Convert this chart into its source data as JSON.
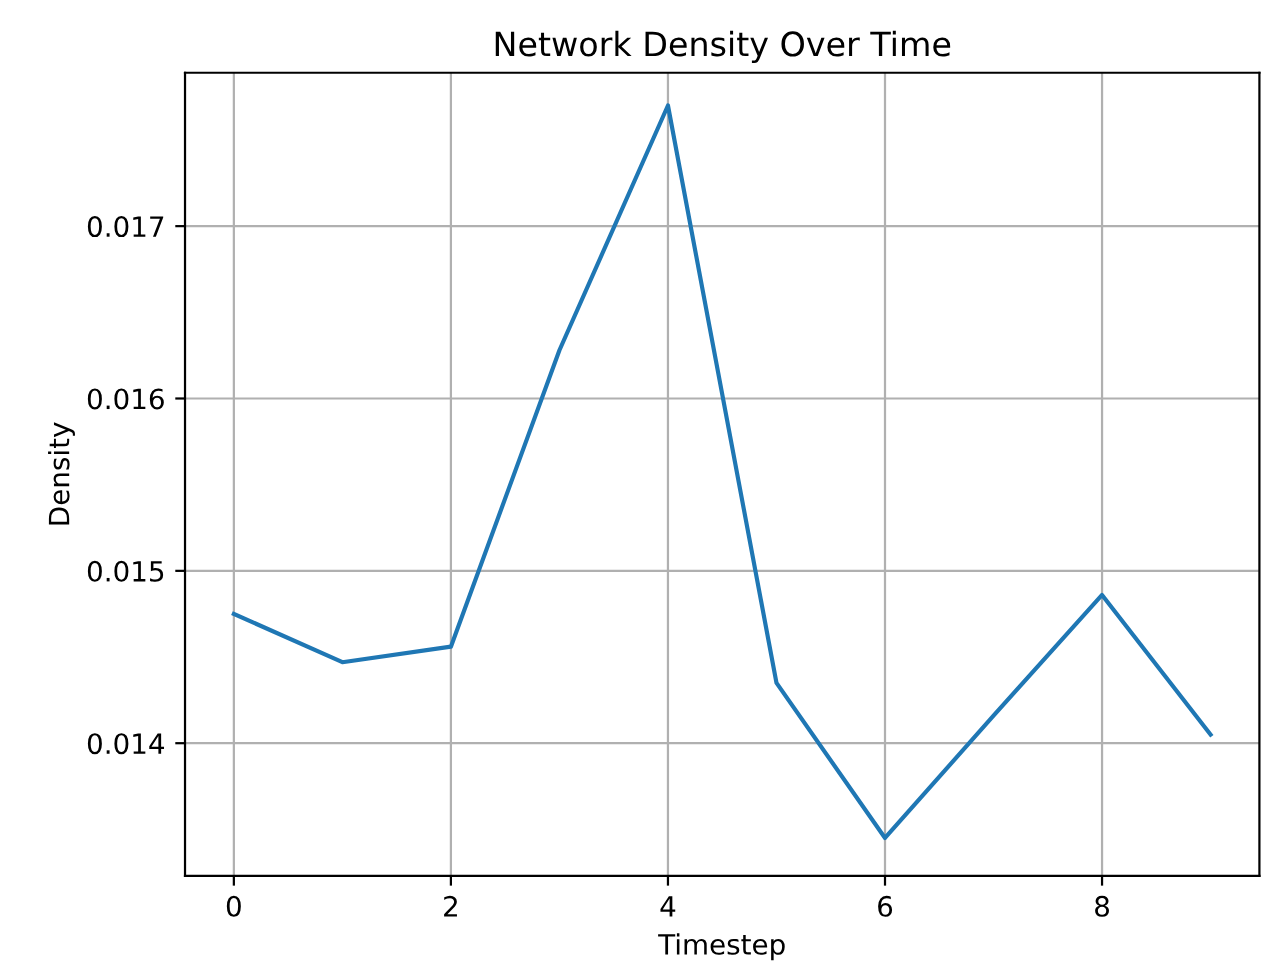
{
  "chart_data": {
    "type": "line",
    "title": "Network Density Over Time",
    "xlabel": "Timestep",
    "ylabel": "Density",
    "x": [
      0,
      1,
      2,
      3,
      4,
      5,
      6,
      7,
      8,
      9
    ],
    "series": [
      {
        "color": "#1f77b4",
        "values": [
          0.01475,
          0.01447,
          0.01456,
          0.01628,
          0.0177,
          0.01435,
          0.01345,
          0.01416,
          0.01486,
          0.01405
        ]
      }
    ],
    "xlim": [
      -0.45,
      9.45
    ],
    "xticks": [
      0,
      2,
      4,
      6,
      8
    ],
    "ylim": [
      0.01323,
      0.01789
    ],
    "yticks": [
      0.014,
      0.015,
      0.016,
      0.017
    ],
    "grid": true,
    "legend": false
  }
}
